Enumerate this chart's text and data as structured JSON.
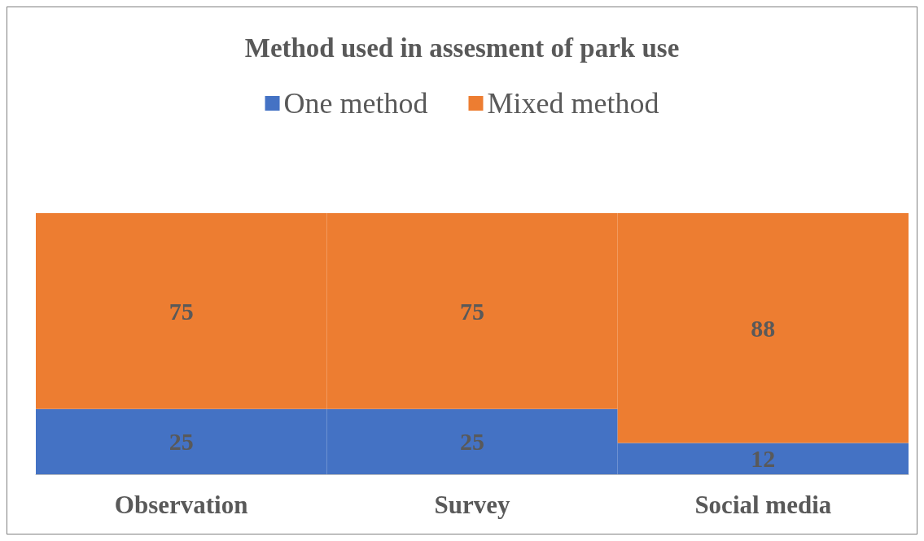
{
  "chart_data": {
    "type": "bar",
    "title": "Method used in assesment of park use",
    "categories": [
      "Observation",
      "Survey",
      "Social media"
    ],
    "series": [
      {
        "name": "One method",
        "color": "#4472c4",
        "values": [
          25,
          25,
          12
        ]
      },
      {
        "name": "Mixed method",
        "color": "#ed7d31",
        "values": [
          75,
          75,
          88
        ]
      }
    ],
    "stacked": true,
    "data_labels": true,
    "legend": "top",
    "tick_labels": "x"
  }
}
